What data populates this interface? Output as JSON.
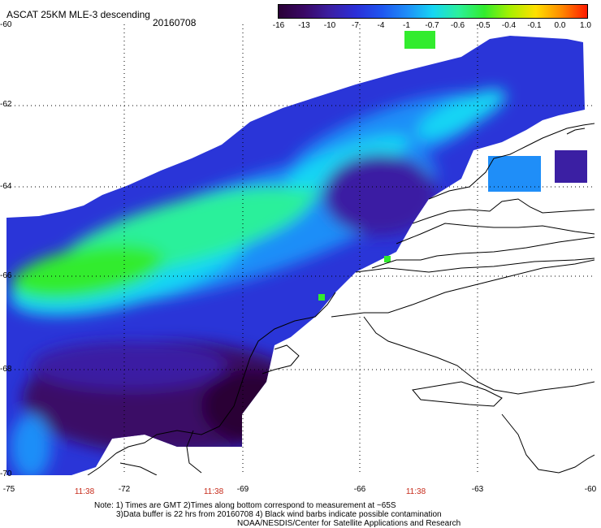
{
  "header": {
    "title": "ASCAT 25KM MLE-3 descending",
    "date": "20160708"
  },
  "colorbar": {
    "labels": [
      "-16",
      "-13",
      "-10",
      "-7",
      "-4",
      "-1",
      "-0.7",
      "-0.6",
      "-0.5",
      "-0.4",
      "-0.1",
      "0.0",
      "1.0"
    ],
    "colors": [
      "#2a0036",
      "#3a0866",
      "#3b1fa3",
      "#2b2fd8",
      "#1f55f0",
      "#1f8ef8",
      "#16d6f4",
      "#2bf09b",
      "#32ec2e",
      "#a8f000",
      "#ffe000",
      "#ff8a00",
      "#ff1a00"
    ]
  },
  "axes": {
    "lat_labels": [
      "-60",
      "-62",
      "-64",
      "-66",
      "-68",
      "-70"
    ],
    "lon_labels": [
      "-75",
      "-72",
      "-69",
      "-66",
      "-63",
      "-60"
    ],
    "time_labels": [
      "11:38",
      "11:38",
      "11:38"
    ]
  },
  "notes": {
    "line1": "Note: 1) Times are GMT 2)Times along bottom correspond to measurement at ~65S",
    "line2": "3)Data buffer is 22 hrs from 20160708 4) Black wind barbs indicate possible contamination",
    "line3": "NOAA/NESDIS/Center for Satellite Applications and Research"
  }
}
